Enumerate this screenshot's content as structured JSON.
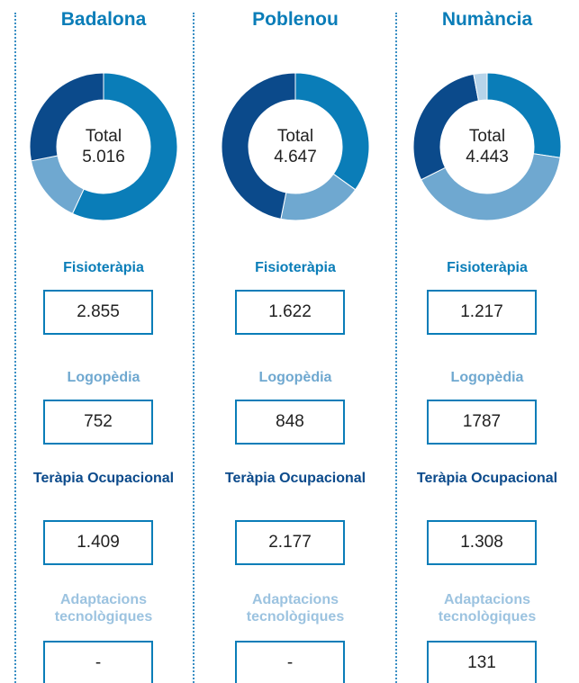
{
  "chart_data": [
    {
      "type": "donut",
      "title": "Badalona",
      "center_label": "Total",
      "total": 5016,
      "total_label": "5.016",
      "categories": [
        "Fisioteràpia",
        "Logopèdia",
        "Teràpia Ocupacional",
        "Adaptacions tecnològiques"
      ],
      "values": [
        2855,
        752,
        1409,
        null
      ],
      "value_labels": [
        "2.855",
        "752",
        "1.409",
        "-"
      ],
      "colors": [
        "#0a7db8",
        "#6fa8d0",
        "#0b4a8b",
        "#b7d4ea"
      ]
    },
    {
      "type": "donut",
      "title": "Poblenou",
      "center_label": "Total",
      "total": 4647,
      "total_label": "4.647",
      "categories": [
        "Fisioteràpia",
        "Logopèdia",
        "Teràpia Ocupacional",
        "Adaptacions tecnològiques"
      ],
      "values": [
        1622,
        848,
        2177,
        null
      ],
      "value_labels": [
        "1.622",
        "848",
        "2.177",
        "-"
      ],
      "colors": [
        "#0a7db8",
        "#6fa8d0",
        "#0b4a8b",
        "#b7d4ea"
      ]
    },
    {
      "type": "donut",
      "title": "Numància",
      "center_label": "Total",
      "total": 4443,
      "total_label": "4.443",
      "categories": [
        "Fisioteràpia",
        "Logopèdia",
        "Teràpia Ocupacional",
        "Adaptacions tecnològiques"
      ],
      "values": [
        1217,
        1787,
        1308,
        131
      ],
      "value_labels": [
        "1.217",
        "1787",
        "1.308",
        "131"
      ],
      "colors": [
        "#0a7db8",
        "#6fa8d0",
        "#0b4a8b",
        "#b7d4ea"
      ]
    }
  ]
}
